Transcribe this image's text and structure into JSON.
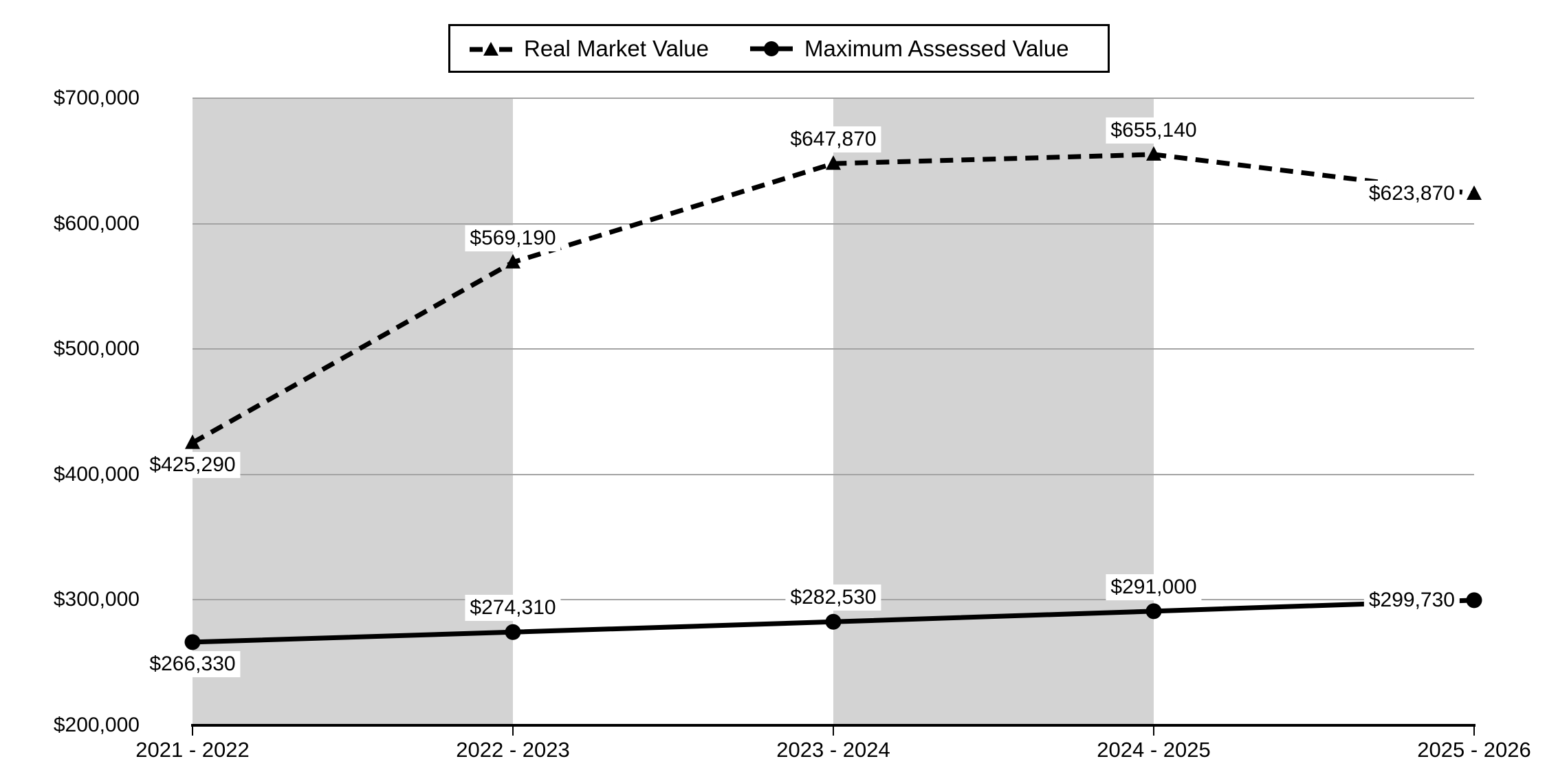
{
  "chart_data": {
    "type": "line",
    "title": "",
    "categories": [
      "2021 - 2022",
      "2022 - 2023",
      "2023 - 2024",
      "2024 - 2025",
      "2025 - 2026"
    ],
    "series": [
      {
        "name": "Real Market Value",
        "line_style": "dashed",
        "marker": "triangle",
        "values": [
          425290,
          569190,
          647870,
          655140,
          623870
        ],
        "labels": [
          "$425,290",
          "$569,190",
          "$647,870",
          "$655,140",
          "$623,870"
        ],
        "label_placements": [
          "below",
          "above",
          "above",
          "above",
          "left"
        ]
      },
      {
        "name": "Maximum Assessed Value",
        "line_style": "solid",
        "marker": "circle",
        "values": [
          266330,
          274310,
          282530,
          291000,
          299730
        ],
        "labels": [
          "$266,330",
          "$274,310",
          "$282,530",
          "$291,000",
          "$299,730"
        ],
        "label_placements": [
          "below",
          "above",
          "above",
          "above",
          "left"
        ]
      }
    ],
    "ylim": [
      200000,
      700000
    ],
    "yticks": [
      200000,
      300000,
      400000,
      500000,
      600000,
      700000
    ],
    "ytick_labels": [
      "$200,000",
      "$300,000",
      "$400,000",
      "$500,000",
      "$600,000",
      "$700,000"
    ],
    "grid": true,
    "legend_position": "top",
    "shaded_category_gaps": [
      0,
      2
    ],
    "colors": {
      "line": "#000000",
      "band": "#d3d3d3",
      "gridline": "#a3a3a3",
      "label_bg": "#ffffff",
      "text": "#000000"
    }
  }
}
